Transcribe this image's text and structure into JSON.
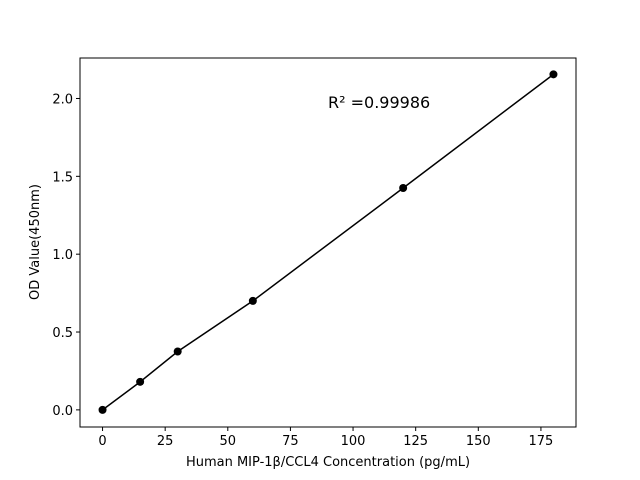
{
  "chart_data": {
    "type": "line",
    "x_label": "Human MIP-1β/CCL4 Concentration (pg/mL)",
    "y_label": "OD Value(450nm)",
    "annotation": "R² =0.99986",
    "x": [
      0,
      15,
      30,
      60,
      120,
      180
    ],
    "series": [
      {
        "color": "#000000",
        "values": [
          0.0,
          0.18,
          0.375,
          0.7,
          1.425,
          2.155
        ]
      }
    ],
    "xlim": [
      -9,
      189
    ],
    "ylim": [
      -0.11,
      2.26
    ],
    "xticks": [
      0,
      25,
      50,
      75,
      100,
      125,
      150,
      175
    ],
    "yticks": [
      {
        "value": 0,
        "label": "0.0"
      },
      0.5,
      {
        "value": 1,
        "label": "1.0"
      },
      1.5,
      {
        "value": 2,
        "label": "2.0"
      }
    ],
    "markers": true
  }
}
